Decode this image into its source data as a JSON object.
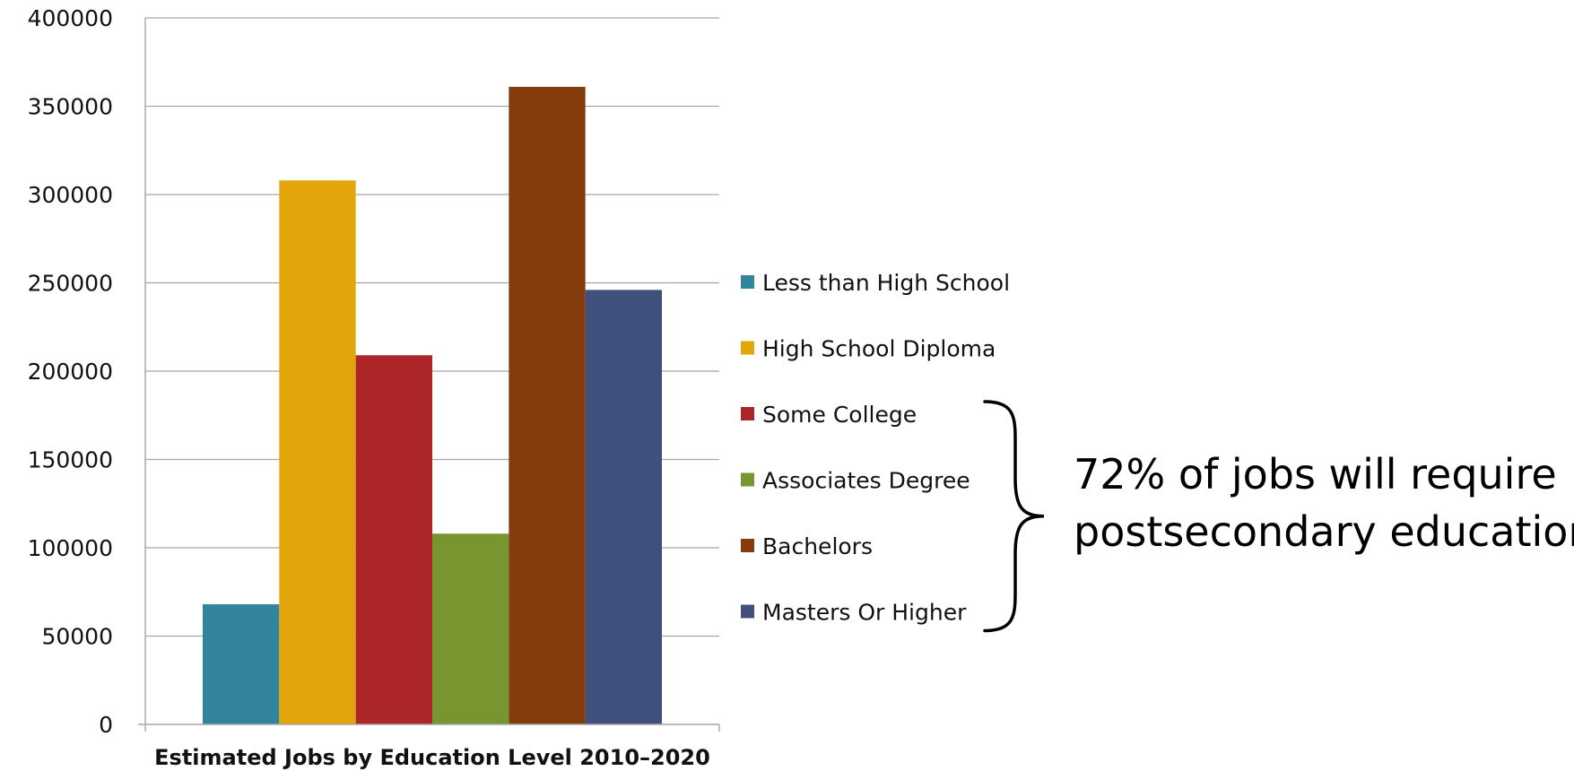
{
  "chart_data": {
    "type": "bar",
    "xlabel": "Estimated Jobs by Education Level 2010–2020",
    "ylabel": "",
    "ylim": [
      0,
      400000
    ],
    "yticks": [
      0,
      50000,
      100000,
      150000,
      200000,
      250000,
      300000,
      350000,
      400000
    ],
    "grid": true,
    "legend_position": "right",
    "series": [
      {
        "name": "Less than High School",
        "color": "#31849b",
        "values": [
          68000
        ]
      },
      {
        "name": "High School Diploma",
        "color": "#e2a60b",
        "values": [
          308000
        ]
      },
      {
        "name": "Some College",
        "color": "#ab2529",
        "values": [
          209000
        ]
      },
      {
        "name": "Associates Degree",
        "color": "#779630",
        "values": [
          108000
        ]
      },
      {
        "name": "Bachelors",
        "color": "#843c0c",
        "values": [
          361000
        ]
      },
      {
        "name": "Masters Or Higher",
        "color": "#40507d",
        "values": [
          246000
        ]
      }
    ]
  },
  "annotation": {
    "lines": [
      "72% of jobs will require",
      "postsecondary education"
    ],
    "bracket_spans": [
      "Some College",
      "Masters Or Higher"
    ]
  },
  "colors": {
    "gridline": "#a6a6a6",
    "axis": "#a6a6a6",
    "text": "#111111"
  }
}
